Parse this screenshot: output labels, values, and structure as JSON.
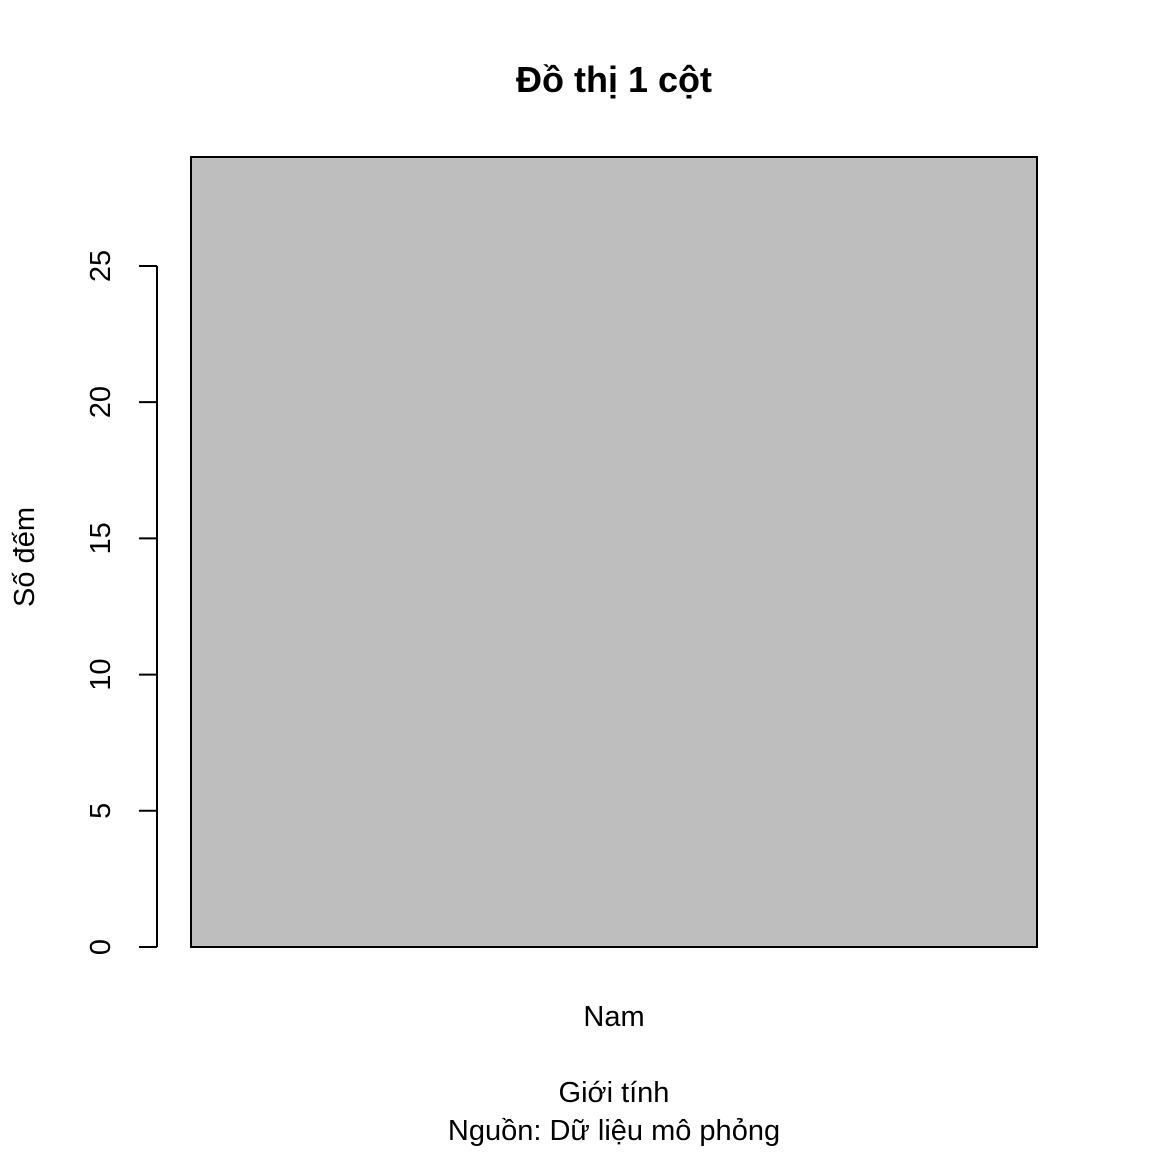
{
  "chart_data": {
    "type": "bar",
    "title": "Đồ thị 1 cột",
    "xlabel": "Giới tính",
    "sub": "Nguồn: Dữ liệu mô phỏng",
    "ylabel": "Số đếm",
    "categories": [
      "Nam"
    ],
    "values": [
      29
    ],
    "ylim": [
      0,
      29
    ],
    "yticks": [
      0,
      5,
      10,
      15,
      20,
      25
    ],
    "bar_color": "#bebebe",
    "grid": false,
    "legend": "none"
  }
}
